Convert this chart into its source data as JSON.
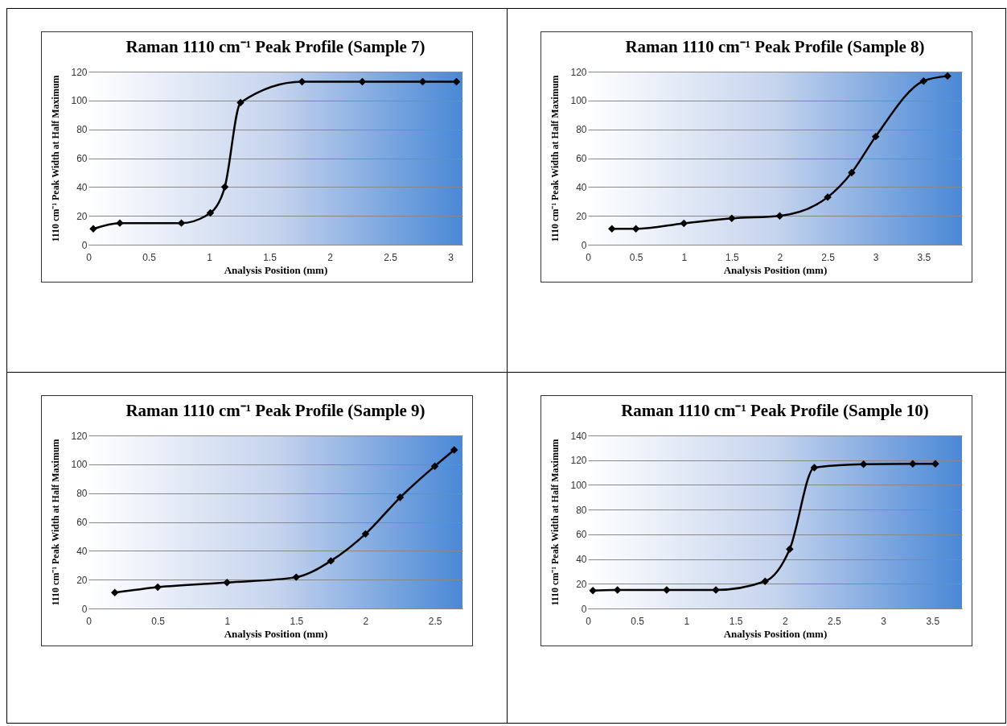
{
  "chart_data": [
    {
      "type": "line",
      "title": "Raman 1110 cm⁻¹ Peak Profile (Sample 7)",
      "xlabel": "Analysis Position (mm)",
      "ylabel": "1110 cm⁻¹ Peak Width at Half Maximum",
      "x": [
        0.04,
        0.26,
        0.77,
        1.01,
        1.13,
        1.26,
        1.77,
        2.27,
        2.77,
        3.05
      ],
      "series": [
        {
          "color": "#000000",
          "values": [
            11,
            15,
            15,
            22,
            40,
            98.5,
            113,
            113,
            113,
            113
          ]
        }
      ],
      "xlim": [
        0,
        3.1
      ],
      "xticks": [
        0,
        0.5,
        1,
        1.5,
        2,
        2.5,
        3
      ],
      "ylim": [
        0,
        120
      ],
      "yticks": [
        0,
        20,
        40,
        60,
        80,
        100,
        120
      ],
      "grid": "y",
      "marker": "diamond",
      "line_style": "solid"
    },
    {
      "type": "line",
      "title": "Raman 1110 cm⁻¹ Peak Profile (Sample 8)",
      "xlabel": "Analysis Position (mm)",
      "ylabel": "1110 cm⁻¹ Peak Width at Half Maximum",
      "x": [
        0.25,
        0.5,
        1,
        1.5,
        2,
        2.5,
        2.75,
        3,
        3.5,
        3.75
      ],
      "series": [
        {
          "color": "#000000",
          "values": [
            11,
            11,
            14.8,
            18.3,
            20,
            33,
            50,
            75,
            113.5,
            117
          ]
        }
      ],
      "xlim": [
        0,
        3.9
      ],
      "xticks": [
        0,
        0.5,
        1,
        1.5,
        2,
        2.5,
        3,
        3.5
      ],
      "ylim": [
        0,
        120
      ],
      "yticks": [
        0,
        20,
        40,
        60,
        80,
        100,
        120
      ],
      "grid": "y",
      "marker": "diamond",
      "line_style": "solid"
    },
    {
      "type": "line",
      "title": "Raman 1110 cm⁻¹ Peak Profile (Sample 9)",
      "xlabel": "Analysis Position (mm)",
      "ylabel": "1110 cm⁻¹ Peak Width at Half Maximum",
      "x": [
        0.19,
        0.5,
        1,
        1.5,
        1.75,
        2,
        2.25,
        2.5,
        2.64
      ],
      "series": [
        {
          "color": "#000000",
          "values": [
            11,
            14.8,
            18,
            21.7,
            33,
            51.7,
            77,
            98.7,
            110
          ]
        }
      ],
      "xlim": [
        0,
        2.7
      ],
      "xticks": [
        0,
        0.5,
        1,
        1.5,
        2,
        2.5
      ],
      "ylim": [
        0,
        120
      ],
      "yticks": [
        0,
        20,
        40,
        60,
        80,
        100,
        120
      ],
      "grid": "y",
      "marker": "diamond",
      "line_style": "solid"
    },
    {
      "type": "line",
      "title": "Raman 1110 cm⁻¹ Peak Profile (Sample 10)",
      "xlabel": "Analysis Position (mm)",
      "ylabel": "1110 cm⁻¹ Peak Width at Half Maximum",
      "x": [
        0.05,
        0.3,
        0.8,
        1.3,
        1.8,
        2.05,
        2.3,
        2.8,
        3.3,
        3.53
      ],
      "series": [
        {
          "color": "#000000",
          "values": [
            14.5,
            15,
            15,
            15,
            22,
            48,
            114,
            116.7,
            117,
            117
          ]
        }
      ],
      "xlim": [
        0,
        3.8
      ],
      "xticks": [
        0,
        0.5,
        1,
        1.5,
        2,
        2.5,
        3,
        3.5
      ],
      "ylim": [
        0,
        140
      ],
      "yticks": [
        0,
        20,
        40,
        60,
        80,
        100,
        120,
        140
      ],
      "grid": "y",
      "marker": "diamond",
      "line_style": "solid"
    }
  ]
}
